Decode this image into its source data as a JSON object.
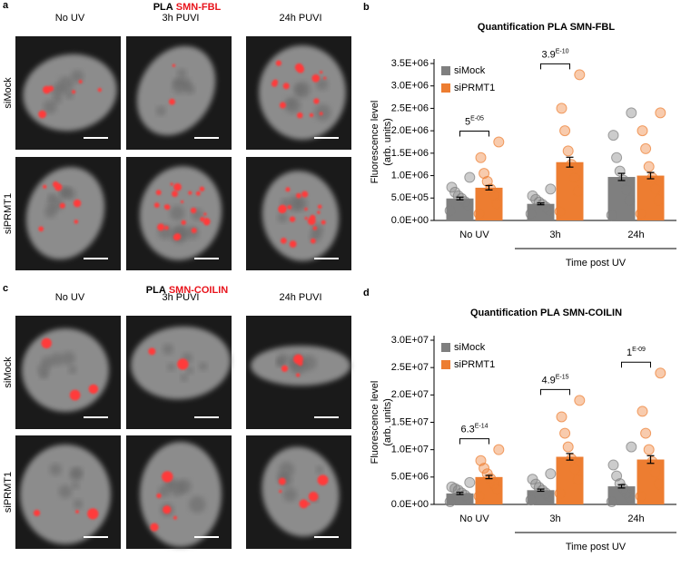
{
  "figure": {
    "panels": [
      {
        "label": "a",
        "title_prefix": "PLA",
        "title_highlight": "SMN-FBL",
        "columns": [
          "No UV",
          "3h PUVI",
          "24h PUVI"
        ],
        "rows": [
          "siMock",
          "siPRMT1"
        ]
      },
      {
        "label": "c",
        "title_prefix": "PLA",
        "title_highlight": "SMN-COILIN",
        "columns": [
          "No UV",
          "3h PUVI",
          "24h PUVI"
        ],
        "rows": [
          "siMock",
          "siPRMT1"
        ]
      }
    ]
  },
  "chart_data": [
    {
      "type": "bar",
      "panel_label": "b",
      "title": "Quantification PLA SMN-FBL",
      "ylabel": [
        "Fluorescence level",
        "(arb. units)"
      ],
      "group_label": "Time post UV",
      "categories": [
        "No UV",
        "3h",
        "24h"
      ],
      "series": [
        {
          "name": "siMock",
          "color": "#7f7f7f",
          "values": [
            490000,
            370000,
            970000
          ],
          "errors": [
            30000,
            20000,
            80000
          ],
          "points": [
            [
              220000,
              340000,
              420000,
              490000,
              550000,
              630000,
              740000,
              960000
            ],
            [
              150000,
              240000,
              300000,
              360000,
              410000,
              470000,
              550000,
              700000
            ],
            [
              120000,
              450000,
              680000,
              900000,
              1100000,
              1400000,
              1900000,
              2400000
            ]
          ]
        },
        {
          "name": "siPRMT1",
          "color": "#ed7d31",
          "values": [
            730000,
            1300000,
            1000000
          ],
          "errors": [
            50000,
            110000,
            70000
          ],
          "points": [
            [
              150000,
              380000,
              560000,
              700000,
              870000,
              1050000,
              1400000,
              1750000
            ],
            [
              200000,
              650000,
              950000,
              1250000,
              1550000,
              2000000,
              2500000,
              3250000
            ],
            [
              150000,
              450000,
              700000,
              950000,
              1200000,
              1600000,
              2000000,
              2400000
            ]
          ]
        }
      ],
      "annotations": [
        {
          "category": "No UV",
          "text": "5",
          "sup": "E-05"
        },
        {
          "category": "3h",
          "text": "3.9",
          "sup": "E-10"
        }
      ],
      "ylim": [
        0,
        3500000
      ],
      "yticks": [
        {
          "value": 0,
          "label": "0.0E+00"
        },
        {
          "value": 500000,
          "label": "5.0E+05"
        },
        {
          "value": 1000000,
          "label": "1.0E+06"
        },
        {
          "value": 1500000,
          "label": "1.5E+06"
        },
        {
          "value": 2000000,
          "label": "2.0E+06"
        },
        {
          "value": 2500000,
          "label": "2.5E+06"
        },
        {
          "value": 3000000,
          "label": "3.0E+06"
        },
        {
          "value": 3500000,
          "label": "3.5E+06"
        }
      ]
    },
    {
      "type": "bar",
      "panel_label": "d",
      "title": "Quantification PLA SMN-COILIN",
      "ylabel": [
        "Fluorescence level",
        "(arb. units)"
      ],
      "group_label": "Time post UV",
      "categories": [
        "No UV",
        "3h",
        "24h"
      ],
      "series": [
        {
          "name": "siMock",
          "color": "#7f7f7f",
          "values": [
            2000000,
            2600000,
            3300000
          ],
          "errors": [
            200000,
            200000,
            300000
          ],
          "points": [
            [
              500000,
              1200000,
              1700000,
              2100000,
              2600000,
              2900000,
              3200000,
              4000000
            ],
            [
              800000,
              1500000,
              2100000,
              2600000,
              3100000,
              3700000,
              4600000,
              5600000
            ],
            [
              500000,
              1300000,
              2100000,
              2900000,
              3800000,
              5200000,
              7200000,
              10500000
            ]
          ]
        },
        {
          "name": "siPRMT1",
          "color": "#ed7d31",
          "values": [
            5000000,
            8700000,
            8200000
          ],
          "errors": [
            300000,
            600000,
            700000
          ],
          "points": [
            [
              1500000,
              2800000,
              3800000,
              4700000,
              5600000,
              6600000,
              8000000,
              10000000
            ],
            [
              2000000,
              4500000,
              6500000,
              8300000,
              10500000,
              13000000,
              16000000,
              19000000
            ],
            [
              1500000,
              3800000,
              5800000,
              7800000,
              10000000,
              13000000,
              17000000,
              24000000
            ]
          ]
        }
      ],
      "annotations": [
        {
          "category": "No UV",
          "text": "6.3",
          "sup": "E-14"
        },
        {
          "category": "3h",
          "text": "4.9",
          "sup": "E-15"
        },
        {
          "category": "24h",
          "text": "1",
          "sup": "E-09"
        }
      ],
      "ylim": [
        0,
        30000000
      ],
      "yticks": [
        {
          "value": 0,
          "label": "0.0E+00"
        },
        {
          "value": 5000000,
          "label": "5.0E+06"
        },
        {
          "value": 10000000,
          "label": "1.0E+07"
        },
        {
          "value": 15000000,
          "label": "1.5E+07"
        },
        {
          "value": 20000000,
          "label": "2.0E+07"
        },
        {
          "value": 25000000,
          "label": "2.5E+07"
        },
        {
          "value": 30000000,
          "label": "3.0E+07"
        }
      ]
    }
  ]
}
